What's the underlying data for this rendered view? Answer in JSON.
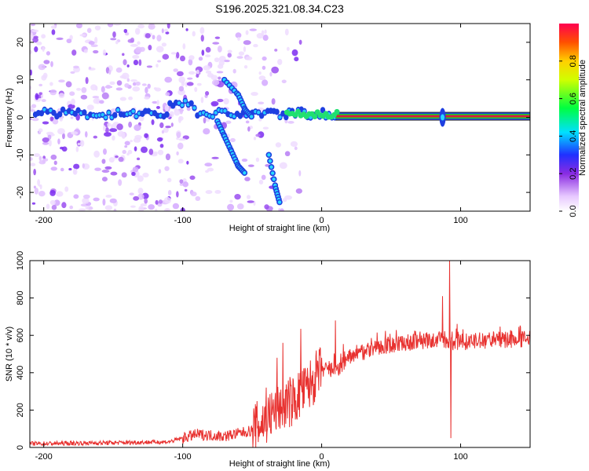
{
  "title": "S196.2025.321.08.34.C23",
  "colors": {
    "snr_line": "#e8312f",
    "ridge_core": "#d81b3c",
    "ridge_mid": "#22d022",
    "ridge_edge": "#1f3fe0",
    "scatter": "#7b2cf0",
    "frame": "#000000"
  },
  "chart_data": [
    {
      "type": "heatmap",
      "name": "spectrogram",
      "xlabel": "Height of straight line (km)",
      "ylabel": "Frequency (Hz)",
      "xlim": [
        -210,
        150
      ],
      "ylim": [
        -25,
        25
      ],
      "xticks": [
        -200,
        -100,
        0,
        100
      ],
      "xtick_labels": [
        "-200",
        "-100",
        "0",
        "100"
      ],
      "yticks": [
        -20,
        -10,
        0,
        10,
        20
      ],
      "ytick_labels": [
        "-20",
        "-10",
        "0",
        "10",
        "20"
      ],
      "colorbar": {
        "label": "Normalized spectral amplitude",
        "range": [
          0,
          1
        ],
        "ticks": [
          0.0,
          0.2,
          0.4,
          0.6,
          0.8
        ],
        "tick_labels": [
          "0.0",
          "0.2",
          "0.4",
          "0.6",
          "0.8"
        ]
      },
      "features": {
        "main_ridge_frequency_hz": 0.3,
        "main_ridge_start_km": 10,
        "descending_branch": [
          [
            -75,
            -1
          ],
          [
            -70,
            -5
          ],
          [
            -65,
            -9
          ],
          [
            -60,
            -13
          ],
          [
            -55,
            -15
          ]
        ],
        "upper_branch": [
          [
            -70,
            10
          ],
          [
            -60,
            6
          ],
          [
            -55,
            2
          ],
          [
            -50,
            0
          ]
        ],
        "deep_branch": [
          [
            -38,
            -10
          ],
          [
            -33,
            -19
          ],
          [
            -30,
            -23
          ]
        ],
        "spike_km": 87
      }
    },
    {
      "type": "line",
      "name": "snr",
      "xlabel": "Height of straight line (km)",
      "ylabel": "SNR (10 * v/v)",
      "xlim": [
        -210,
        150
      ],
      "ylim": [
        0,
        1000
      ],
      "xticks": [
        -200,
        -100,
        0,
        100
      ],
      "xtick_labels": [
        "-200",
        "-100",
        "0",
        "100"
      ],
      "yticks": [
        0,
        200,
        400,
        600,
        800,
        1000
      ],
      "ytick_labels": [
        "0",
        "200",
        "400",
        "600",
        "800",
        "1000"
      ],
      "envelope": {
        "x": [
          -210,
          -150,
          -110,
          -90,
          -70,
          -50,
          -40,
          -30,
          -20,
          -10,
          0,
          10,
          20,
          40,
          60,
          80,
          88,
          92,
          95,
          110,
          150
        ],
        "y": [
          20,
          25,
          30,
          70,
          60,
          90,
          150,
          220,
          250,
          320,
          420,
          400,
          480,
          540,
          560,
          570,
          580,
          550,
          560,
          570,
          580
        ]
      },
      "excursions": [
        [
          -40,
          320
        ],
        [
          -32,
          480
        ],
        [
          -28,
          560
        ],
        [
          -15,
          635
        ],
        [
          0,
          480
        ],
        [
          10,
          680
        ],
        [
          87,
          810
        ],
        [
          92,
          1000
        ],
        [
          93,
          50
        ]
      ]
    }
  ]
}
